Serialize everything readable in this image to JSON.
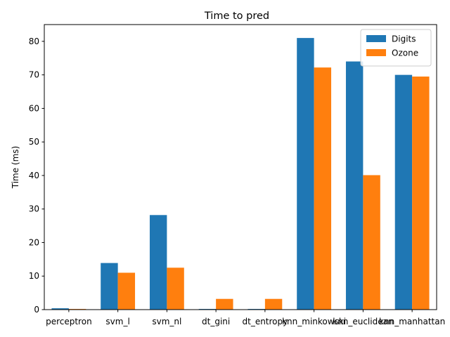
{
  "chart_data": {
    "type": "bar",
    "title": "Time to pred",
    "xlabel": "",
    "ylabel": "Time (ms)",
    "categories": [
      "perceptron",
      "svm_l",
      "svm_nl",
      "dt_gini",
      "dt_entropy",
      "knn_minkowski",
      "knn_euclidean",
      "knn_manhattan"
    ],
    "series": [
      {
        "name": "Digits",
        "color": "#1f77b4",
        "values": [
          0.4,
          13.9,
          28.2,
          0.2,
          0.2,
          81.0,
          74.0,
          70.0
        ]
      },
      {
        "name": "Ozone",
        "color": "#ff7f0e",
        "values": [
          0.2,
          11.0,
          12.5,
          3.2,
          3.2,
          72.2,
          40.1,
          69.5
        ]
      }
    ],
    "ylim": [
      0,
      85
    ],
    "yticks": [
      0,
      10,
      20,
      30,
      40,
      50,
      60,
      70,
      80
    ],
    "legend_position": "top-right",
    "grid": false
  }
}
